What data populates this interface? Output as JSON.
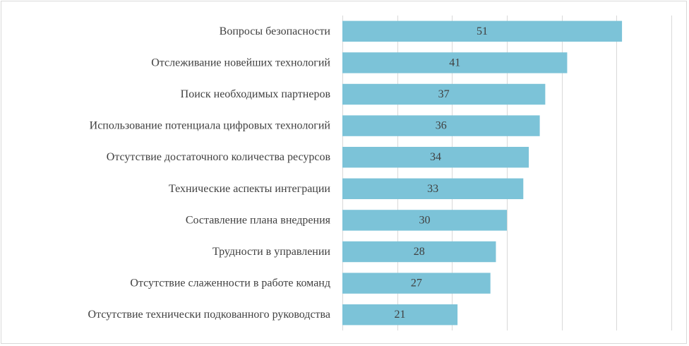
{
  "chart_data": {
    "type": "bar",
    "orientation": "horizontal",
    "categories": [
      "Вопросы безопасности",
      "Отслеживание новейших технологий",
      "Поиск необходимых партнеров",
      "Использование потенциала цифровых технологий",
      "Отсутствие достаточного количества ресурсов",
      "Технические аспекты интеграции",
      "Составление плана внедрения",
      "Трудности в управлении",
      "Отсутствие слаженности в работе команд",
      "Отсутствие технически подкованного руководства"
    ],
    "values": [
      51,
      41,
      37,
      36,
      34,
      33,
      30,
      28,
      27,
      21
    ],
    "xlim": [
      0,
      60
    ],
    "grid": true,
    "bar_color": "#7cc3d8",
    "title": "",
    "xlabel": "",
    "ylabel": ""
  }
}
